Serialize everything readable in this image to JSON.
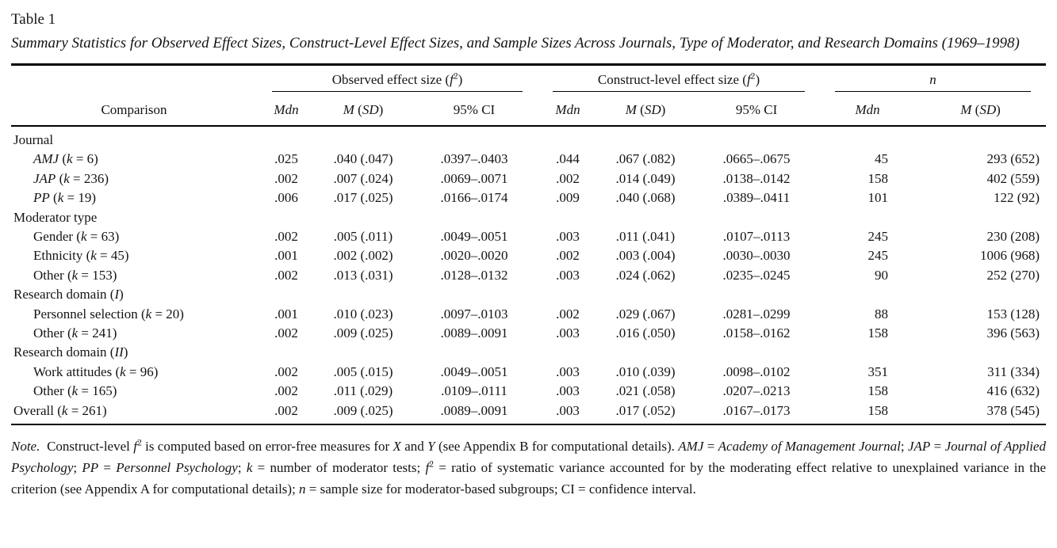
{
  "title": "Table 1",
  "caption": "Summary Statistics for Observed Effect Sizes, Construct-Level Effect Sizes, and Sample Sizes Across Journals, Type of Moderator, and Research Domains (1969–1998)",
  "table": {
    "comparison_header": "Comparison",
    "spanners": [
      [
        {
          "t": "Observed effect size ("
        },
        {
          "t": "f",
          "i": true
        },
        {
          "t": "2",
          "sup": true
        },
        {
          "t": ")"
        }
      ],
      [
        {
          "t": "Construct-level effect size ("
        },
        {
          "t": "f",
          "i": true
        },
        {
          "t": "2",
          "sup": true
        },
        {
          "t": ")"
        }
      ],
      [
        {
          "t": "n",
          "i": true
        }
      ]
    ],
    "subheaders": [
      [
        {
          "t": "Mdn",
          "i": true
        }
      ],
      [
        {
          "t": "M",
          "i": true
        },
        {
          "t": " ("
        },
        {
          "t": "SD",
          "i": true
        },
        {
          "t": ")"
        }
      ],
      [
        {
          "t": "95% CI"
        }
      ],
      [
        {
          "t": "Mdn",
          "i": true
        }
      ],
      [
        {
          "t": "M",
          "i": true
        },
        {
          "t": " ("
        },
        {
          "t": "SD",
          "i": true
        },
        {
          "t": ")"
        }
      ],
      [
        {
          "t": "95% CI"
        }
      ],
      [
        {
          "t": "Mdn",
          "i": true
        }
      ],
      [
        {
          "t": "M",
          "i": true
        },
        {
          "t": " ("
        },
        {
          "t": "SD",
          "i": true
        },
        {
          "t": ")"
        }
      ]
    ],
    "rows": [
      {
        "type": "group",
        "label": [
          {
            "t": "Journal"
          }
        ]
      },
      {
        "type": "data",
        "indent": true,
        "label": [
          {
            "t": "AMJ",
            "i": true
          },
          {
            "t": " ("
          },
          {
            "t": "k",
            "i": true
          },
          {
            "t": " = 6)"
          }
        ],
        "values": [
          ".025",
          ".040 (.047)",
          ".0397–.0403",
          ".044",
          ".067 (.082)",
          ".0665–.0675",
          "45",
          "293 (652)"
        ]
      },
      {
        "type": "data",
        "indent": true,
        "label": [
          {
            "t": "JAP",
            "i": true
          },
          {
            "t": " ("
          },
          {
            "t": "k",
            "i": true
          },
          {
            "t": " = 236)"
          }
        ],
        "values": [
          ".002",
          ".007 (.024)",
          ".0069–.0071",
          ".002",
          ".014 (.049)",
          ".0138–.0142",
          "158",
          "402 (559)"
        ]
      },
      {
        "type": "data",
        "indent": true,
        "label": [
          {
            "t": "PP",
            "i": true
          },
          {
            "t": " ("
          },
          {
            "t": "k",
            "i": true
          },
          {
            "t": " = 19)"
          }
        ],
        "values": [
          ".006",
          ".017 (.025)",
          ".0166–.0174",
          ".009",
          ".040 (.068)",
          ".0389–.0411",
          "101",
          "122 (92)"
        ]
      },
      {
        "type": "group",
        "label": [
          {
            "t": "Moderator type"
          }
        ]
      },
      {
        "type": "data",
        "indent": true,
        "label": [
          {
            "t": "Gender ("
          },
          {
            "t": "k",
            "i": true
          },
          {
            "t": " = 63)"
          }
        ],
        "values": [
          ".002",
          ".005 (.011)",
          ".0049–.0051",
          ".003",
          ".011 (.041)",
          ".0107–.0113",
          "245",
          "230 (208)"
        ]
      },
      {
        "type": "data",
        "indent": true,
        "label": [
          {
            "t": "Ethnicity ("
          },
          {
            "t": "k",
            "i": true
          },
          {
            "t": " = 45)"
          }
        ],
        "values": [
          ".001",
          ".002 (.002)",
          ".0020–.0020",
          ".002",
          ".003 (.004)",
          ".0030–.0030",
          "245",
          "1006 (968)"
        ]
      },
      {
        "type": "data",
        "indent": true,
        "label": [
          {
            "t": "Other ("
          },
          {
            "t": "k",
            "i": true
          },
          {
            "t": " = 153)"
          }
        ],
        "values": [
          ".002",
          ".013 (.031)",
          ".0128–.0132",
          ".003",
          ".024 (.062)",
          ".0235–.0245",
          "90",
          "252 (270)"
        ]
      },
      {
        "type": "group",
        "label": [
          {
            "t": "Research domain ("
          },
          {
            "t": "I",
            "i": true
          },
          {
            "t": ")"
          }
        ]
      },
      {
        "type": "data",
        "indent": true,
        "label": [
          {
            "t": "Personnel selection ("
          },
          {
            "t": "k",
            "i": true
          },
          {
            "t": " = 20)"
          }
        ],
        "values": [
          ".001",
          ".010 (.023)",
          ".0097–.0103",
          ".002",
          ".029 (.067)",
          ".0281–.0299",
          "88",
          "153 (128)"
        ]
      },
      {
        "type": "data",
        "indent": true,
        "label": [
          {
            "t": "Other ("
          },
          {
            "t": "k",
            "i": true
          },
          {
            "t": " = 241)"
          }
        ],
        "values": [
          ".002",
          ".009 (.025)",
          ".0089–.0091",
          ".003",
          ".016 (.050)",
          ".0158–.0162",
          "158",
          "396 (563)"
        ]
      },
      {
        "type": "group",
        "label": [
          {
            "t": "Research domain ("
          },
          {
            "t": "II",
            "i": true
          },
          {
            "t": ")"
          }
        ]
      },
      {
        "type": "data",
        "indent": true,
        "label": [
          {
            "t": "Work attitudes ("
          },
          {
            "t": "k",
            "i": true
          },
          {
            "t": " = 96)"
          }
        ],
        "values": [
          ".002",
          ".005 (.015)",
          ".0049–.0051",
          ".003",
          ".010 (.039)",
          ".0098–.0102",
          "351",
          "311 (334)"
        ]
      },
      {
        "type": "data",
        "indent": true,
        "label": [
          {
            "t": "Other ("
          },
          {
            "t": "k",
            "i": true
          },
          {
            "t": " = 165)"
          }
        ],
        "values": [
          ".002",
          ".011 (.029)",
          ".0109–.0111",
          ".003",
          ".021 (.058)",
          ".0207–.0213",
          "158",
          "416 (632)"
        ]
      },
      {
        "type": "data",
        "indent": false,
        "label": [
          {
            "t": "Overall ("
          },
          {
            "t": "k",
            "i": true
          },
          {
            "t": " = 261)"
          }
        ],
        "values": [
          ".002",
          ".009 (.025)",
          ".0089–.0091",
          ".003",
          ".017 (.052)",
          ".0167–.0173",
          "158",
          "378 (545)"
        ]
      }
    ]
  },
  "note": [
    {
      "t": "Note.",
      "i": true
    },
    {
      "t": "  Construct-level "
    },
    {
      "t": "f",
      "i": true
    },
    {
      "t": "2",
      "sup": true
    },
    {
      "t": " is computed based on error-free measures for "
    },
    {
      "t": "X",
      "i": true
    },
    {
      "t": " and "
    },
    {
      "t": "Y",
      "i": true
    },
    {
      "t": " (see Appendix B for computational details). "
    },
    {
      "t": "AMJ",
      "i": true
    },
    {
      "t": " = "
    },
    {
      "t": "Academy of Management Journal",
      "i": true
    },
    {
      "t": "; "
    },
    {
      "t": "JAP",
      "i": true
    },
    {
      "t": " = "
    },
    {
      "t": "Journal of Applied Psychology",
      "i": true
    },
    {
      "t": "; "
    },
    {
      "t": "PP",
      "i": true
    },
    {
      "t": " = "
    },
    {
      "t": "Personnel Psychology",
      "i": true
    },
    {
      "t": "; "
    },
    {
      "t": "k",
      "i": true
    },
    {
      "t": " = number of moderator tests; "
    },
    {
      "t": "f",
      "i": true
    },
    {
      "t": "2",
      "sup": true
    },
    {
      "t": " = ratio of systematic variance accounted for by the moderating effect relative to unexplained variance in the criterion (see Appendix A for computational details); "
    },
    {
      "t": "n",
      "i": true
    },
    {
      "t": " = sample size for moderator-based subgroups; CI = confidence interval."
    }
  ],
  "chart_data": {
    "type": "table",
    "title": "Summary Statistics for Observed Effect Sizes, Construct-Level Effect Sizes, and Sample Sizes Across Journals, Type of Moderator, and Research Domains (1969-1998)",
    "columns": [
      "Comparison",
      "Observed Mdn",
      "Observed M (SD)",
      "Observed 95% CI",
      "Construct Mdn",
      "Construct M (SD)",
      "Construct 95% CI",
      "n Mdn",
      "n M (SD)"
    ],
    "rows": [
      [
        "AMJ (k = 6)",
        ".025",
        ".040 (.047)",
        ".0397-.0403",
        ".044",
        ".067 (.082)",
        ".0665-.0675",
        "45",
        "293 (652)"
      ],
      [
        "JAP (k = 236)",
        ".002",
        ".007 (.024)",
        ".0069-.0071",
        ".002",
        ".014 (.049)",
        ".0138-.0142",
        "158",
        "402 (559)"
      ],
      [
        "PP (k = 19)",
        ".006",
        ".017 (.025)",
        ".0166-.0174",
        ".009",
        ".040 (.068)",
        ".0389-.0411",
        "101",
        "122 (92)"
      ],
      [
        "Gender (k = 63)",
        ".002",
        ".005 (.011)",
        ".0049-.0051",
        ".003",
        ".011 (.041)",
        ".0107-.0113",
        "245",
        "230 (208)"
      ],
      [
        "Ethnicity (k = 45)",
        ".001",
        ".002 (.002)",
        ".0020-.0020",
        ".002",
        ".003 (.004)",
        ".0030-.0030",
        "245",
        "1006 (968)"
      ],
      [
        "Other (k = 153)",
        ".002",
        ".013 (.031)",
        ".0128-.0132",
        ".003",
        ".024 (.062)",
        ".0235-.0245",
        "90",
        "252 (270)"
      ],
      [
        "Personnel selection (k = 20)",
        ".001",
        ".010 (.023)",
        ".0097-.0103",
        ".002",
        ".029 (.067)",
        ".0281-.0299",
        "88",
        "153 (128)"
      ],
      [
        "Other (k = 241)",
        ".002",
        ".009 (.025)",
        ".0089-.0091",
        ".003",
        ".016 (.050)",
        ".0158-.0162",
        "158",
        "396 (563)"
      ],
      [
        "Work attitudes (k = 96)",
        ".002",
        ".005 (.015)",
        ".0049-.0051",
        ".003",
        ".010 (.039)",
        ".0098-.0102",
        "351",
        "311 (334)"
      ],
      [
        "Other (k = 165)",
        ".002",
        ".011 (.029)",
        ".0109-.0111",
        ".003",
        ".021 (.058)",
        ".0207-.0213",
        "158",
        "416 (632)"
      ],
      [
        "Overall (k = 261)",
        ".002",
        ".009 (.025)",
        ".0089-.0091",
        ".003",
        ".017 (.052)",
        ".0167-.0173",
        "158",
        "378 (545)"
      ]
    ]
  }
}
